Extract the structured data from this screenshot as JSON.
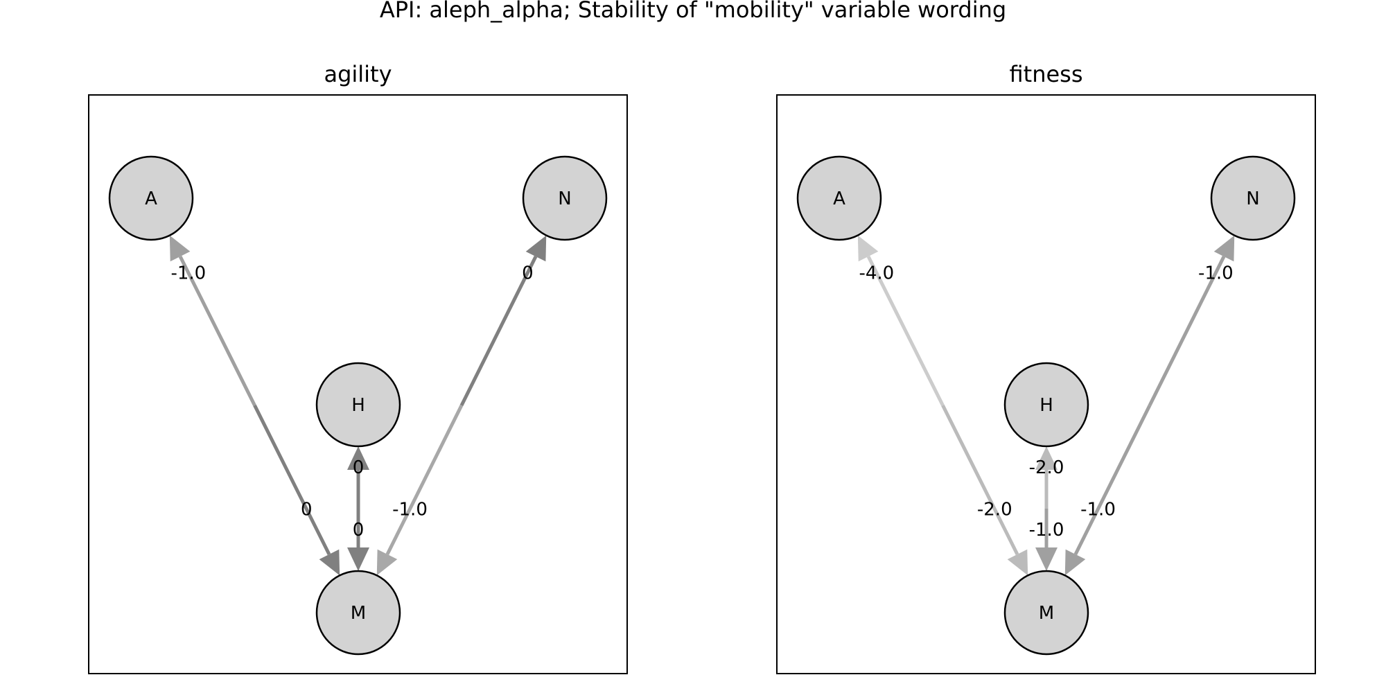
{
  "title": "API: aleph_alpha; Stability of \"mobility\" variable wording",
  "panels": [
    {
      "title": "agility",
      "nodes": [
        {
          "id": "A",
          "label": "A"
        },
        {
          "id": "N",
          "label": "N"
        },
        {
          "id": "H",
          "label": "H"
        },
        {
          "id": "M",
          "label": "M"
        }
      ],
      "edges": [
        {
          "from": "M",
          "to": "A",
          "label": "-1.0",
          "color": "#a0a0a0"
        },
        {
          "from": "A",
          "to": "M",
          "label": "0",
          "color": "#808080"
        },
        {
          "from": "M",
          "to": "N",
          "label": "0",
          "color": "#808080"
        },
        {
          "from": "N",
          "to": "M",
          "label": "-1.0",
          "color": "#a8a8a8"
        },
        {
          "from": "M",
          "to": "H",
          "label": "0",
          "color": "#808080"
        },
        {
          "from": "H",
          "to": "M",
          "label": "0",
          "color": "#808080"
        }
      ]
    },
    {
      "title": "fitness",
      "nodes": [
        {
          "id": "A",
          "label": "A"
        },
        {
          "id": "N",
          "label": "N"
        },
        {
          "id": "H",
          "label": "H"
        },
        {
          "id": "M",
          "label": "M"
        }
      ],
      "edges": [
        {
          "from": "M",
          "to": "A",
          "label": "-4.0",
          "color": "#cccccc"
        },
        {
          "from": "A",
          "to": "M",
          "label": "-2.0",
          "color": "#bbbbbb"
        },
        {
          "from": "M",
          "to": "N",
          "label": "-1.0",
          "color": "#a0a0a0"
        },
        {
          "from": "N",
          "to": "M",
          "label": "-1.0",
          "color": "#a0a0a0"
        },
        {
          "from": "M",
          "to": "H",
          "label": "-2.0",
          "color": "#bbbbbb"
        },
        {
          "from": "H",
          "to": "M",
          "label": "-1.0",
          "color": "#a0a0a0"
        }
      ]
    }
  ]
}
